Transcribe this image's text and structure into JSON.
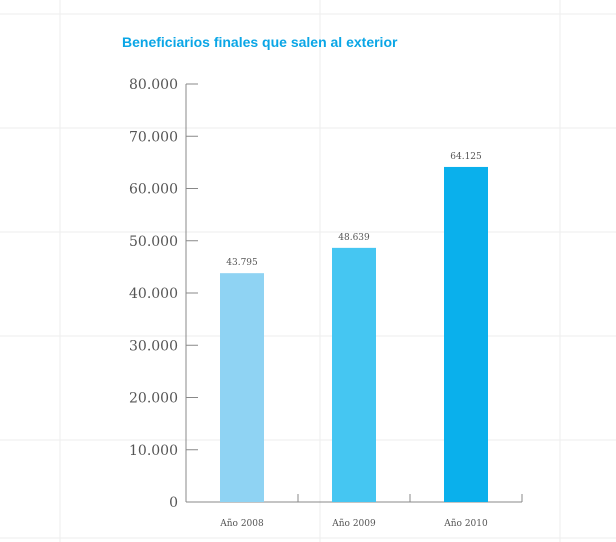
{
  "chart_data": {
    "type": "bar",
    "title": "Beneficiarios finales que salen al exterior",
    "categories": [
      "Año 2008",
      "Año 2009",
      "Año 2010"
    ],
    "values": [
      43795,
      48639,
      64125
    ],
    "value_labels": [
      "43.795",
      "48.639",
      "64.125"
    ],
    "ylim": [
      0,
      80000
    ],
    "yticks": [
      0,
      10000,
      20000,
      30000,
      40000,
      50000,
      60000,
      70000,
      80000
    ],
    "ytick_labels": [
      "0",
      "10.000",
      "20.000",
      "30.000",
      "40.000",
      "50.000",
      "60.000",
      "70.000",
      "80.000"
    ],
    "bar_colors": [
      "#8fd3f3",
      "#45c6f2",
      "#0ab0ec"
    ],
    "title_color": "#0aa6e6",
    "grid": true,
    "xlabel": "",
    "ylabel": ""
  }
}
